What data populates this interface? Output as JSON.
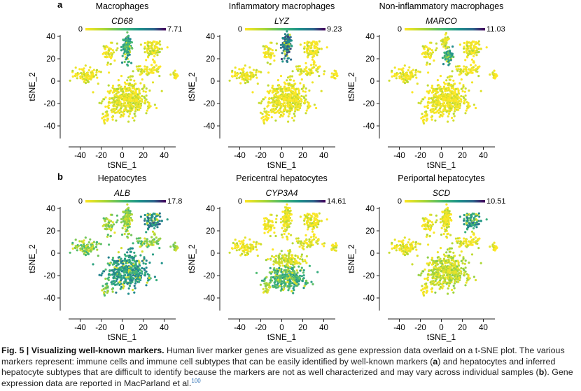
{
  "figure": {
    "caption": {
      "label": "Fig. 5 | Visualizing well-known markers.",
      "text_part1": "Human liver marker genes are visualized as gene expression data overlaid on a t-SNE plot. The various markers represent: immune cells and immune cell subtypes that can be easily identified by well-known markers (",
      "bold_a": "a",
      "text_part2": ") and hepatocytes and inferred hepatocyte subtypes that are difficult to identify because the markers are not as well characterized and may vary across individual samples (",
      "bold_b": "b",
      "text_part3": "). Gene expression data are reported in MacParland et al.",
      "ref": "100"
    },
    "colors": {
      "low": "#f7e61f",
      "mid_low": "#a6d63a",
      "mid": "#3fb67a",
      "mid_high": "#1f908c",
      "high_mid": "#2c6e8e",
      "high": "#44025a"
    }
  },
  "chart_data": [
    {
      "type": "scatter",
      "row_label": "a",
      "title": "Macrophages",
      "gene": "CD68",
      "scale_min": "0",
      "scale_max": "7.71",
      "xlabel": "tSNE_1",
      "ylabel": "tSNE_2",
      "xlim": [
        -55,
        55
      ],
      "ylim": [
        -55,
        45
      ],
      "xticks": [
        -40,
        -20,
        0,
        20,
        40
      ],
      "yticks": [
        -40,
        -20,
        0,
        20,
        40
      ],
      "clusters": [
        {
          "x": 5,
          "y": -16,
          "rx": 18,
          "ry": 14,
          "n": 420,
          "expr": 0.08
        },
        {
          "x": 5,
          "y": 30,
          "rx": 4,
          "ry": 12,
          "n": 120,
          "expr": 0.55
        },
        {
          "x": 30,
          "y": 28,
          "rx": 7,
          "ry": 7,
          "n": 90,
          "expr": 0.08
        },
        {
          "x": -35,
          "y": 5,
          "rx": 12,
          "ry": 6,
          "n": 90,
          "expr": 0.05
        },
        {
          "x": -12,
          "y": 25,
          "rx": 6,
          "ry": 9,
          "n": 50,
          "expr": 0.05
        },
        {
          "x": 25,
          "y": 10,
          "rx": 10,
          "ry": 5,
          "n": 60,
          "expr": 0.05
        },
        {
          "x": -15,
          "y": -30,
          "rx": 4,
          "ry": 6,
          "n": 25,
          "expr": 0.05
        },
        {
          "x": 50,
          "y": 5,
          "rx": 3,
          "ry": 3,
          "n": 20,
          "expr": 0.05
        }
      ]
    },
    {
      "type": "scatter",
      "row_label": "",
      "title": "Inflammatory macrophages",
      "gene": "LYZ",
      "scale_min": "0",
      "scale_max": "9.23",
      "xlabel": "tSNE_1",
      "ylabel": "tSNE_2",
      "xlim": [
        -55,
        55
      ],
      "ylim": [
        -55,
        45
      ],
      "xticks": [
        -40,
        -20,
        0,
        20,
        40
      ],
      "yticks": [
        -40,
        -20,
        0,
        20,
        40
      ],
      "clusters": [
        {
          "x": 5,
          "y": -16,
          "rx": 18,
          "ry": 14,
          "n": 420,
          "expr": 0.05
        },
        {
          "x": 5,
          "y": 32,
          "rx": 4,
          "ry": 11,
          "n": 130,
          "expr": 0.75
        },
        {
          "x": 30,
          "y": 28,
          "rx": 7,
          "ry": 7,
          "n": 90,
          "expr": 0.05
        },
        {
          "x": -35,
          "y": 5,
          "rx": 12,
          "ry": 6,
          "n": 90,
          "expr": 0.05
        },
        {
          "x": -12,
          "y": 25,
          "rx": 6,
          "ry": 9,
          "n": 50,
          "expr": 0.05
        },
        {
          "x": 25,
          "y": 10,
          "rx": 10,
          "ry": 5,
          "n": 60,
          "expr": 0.05
        },
        {
          "x": -15,
          "y": -30,
          "rx": 4,
          "ry": 6,
          "n": 25,
          "expr": 0.05
        },
        {
          "x": 50,
          "y": 5,
          "rx": 3,
          "ry": 3,
          "n": 20,
          "expr": 0.05
        }
      ]
    },
    {
      "type": "scatter",
      "row_label": "",
      "title": "Non-inflammatory macrophages",
      "gene": "MARCO",
      "scale_min": "0",
      "scale_max": "11.03",
      "xlabel": "tSNE_1",
      "ylabel": "tSNE_2",
      "xlim": [
        -55,
        55
      ],
      "ylim": [
        -55,
        45
      ],
      "xticks": [
        -40,
        -20,
        0,
        20,
        40
      ],
      "yticks": [
        -40,
        -20,
        0,
        20,
        40
      ],
      "clusters": [
        {
          "x": 5,
          "y": -16,
          "rx": 18,
          "ry": 14,
          "n": 420,
          "expr": 0.04
        },
        {
          "x": 7,
          "y": 22,
          "rx": 4,
          "ry": 6,
          "n": 80,
          "expr": 0.55
        },
        {
          "x": 4,
          "y": 36,
          "rx": 3,
          "ry": 5,
          "n": 40,
          "expr": 0.1
        },
        {
          "x": 30,
          "y": 28,
          "rx": 7,
          "ry": 7,
          "n": 90,
          "expr": 0.04
        },
        {
          "x": -35,
          "y": 5,
          "rx": 12,
          "ry": 6,
          "n": 90,
          "expr": 0.04
        },
        {
          "x": -12,
          "y": 25,
          "rx": 6,
          "ry": 9,
          "n": 50,
          "expr": 0.04
        },
        {
          "x": 25,
          "y": 10,
          "rx": 10,
          "ry": 5,
          "n": 60,
          "expr": 0.04
        },
        {
          "x": -15,
          "y": -30,
          "rx": 4,
          "ry": 6,
          "n": 25,
          "expr": 0.04
        },
        {
          "x": 50,
          "y": 5,
          "rx": 3,
          "ry": 3,
          "n": 20,
          "expr": 0.04
        }
      ]
    },
    {
      "type": "scatter",
      "row_label": "b",
      "title": "Hepatocytes",
      "gene": "ALB",
      "scale_min": "0",
      "scale_max": "17.8",
      "xlabel": "tSNE_1",
      "ylabel": "tSNE_2",
      "xlim": [
        -55,
        55
      ],
      "ylim": [
        -55,
        45
      ],
      "xticks": [
        -40,
        -20,
        0,
        20,
        40
      ],
      "yticks": [
        -40,
        -20,
        0,
        20,
        40
      ],
      "clusters": [
        {
          "x": 5,
          "y": -16,
          "rx": 18,
          "ry": 14,
          "n": 420,
          "expr": 0.62
        },
        {
          "x": 5,
          "y": 30,
          "rx": 4,
          "ry": 12,
          "n": 120,
          "expr": 0.3
        },
        {
          "x": 30,
          "y": 28,
          "rx": 7,
          "ry": 7,
          "n": 90,
          "expr": 0.7
        },
        {
          "x": -35,
          "y": 5,
          "rx": 12,
          "ry": 6,
          "n": 90,
          "expr": 0.35
        },
        {
          "x": -12,
          "y": 25,
          "rx": 6,
          "ry": 9,
          "n": 50,
          "expr": 0.3
        },
        {
          "x": 25,
          "y": 10,
          "rx": 10,
          "ry": 5,
          "n": 60,
          "expr": 0.35
        },
        {
          "x": -15,
          "y": -30,
          "rx": 4,
          "ry": 6,
          "n": 25,
          "expr": 0.4
        },
        {
          "x": 50,
          "y": 5,
          "rx": 3,
          "ry": 3,
          "n": 20,
          "expr": 0.3
        }
      ]
    },
    {
      "type": "scatter",
      "row_label": "",
      "title": "Pericentral hepatocytes",
      "gene": "CYP3A4",
      "scale_min": "0",
      "scale_max": "14.61",
      "xlabel": "tSNE_1",
      "ylabel": "tSNE_2",
      "xlim": [
        -55,
        55
      ],
      "ylim": [
        -55,
        45
      ],
      "xticks": [
        -40,
        -20,
        0,
        20,
        40
      ],
      "yticks": [
        -40,
        -20,
        0,
        20,
        40
      ],
      "clusters": [
        {
          "x": 5,
          "y": -22,
          "rx": 16,
          "ry": 10,
          "n": 320,
          "expr": 0.5
        },
        {
          "x": 5,
          "y": -6,
          "rx": 16,
          "ry": 6,
          "n": 120,
          "expr": 0.12
        },
        {
          "x": 5,
          "y": 30,
          "rx": 4,
          "ry": 12,
          "n": 120,
          "expr": 0.05
        },
        {
          "x": 30,
          "y": 28,
          "rx": 7,
          "ry": 7,
          "n": 90,
          "expr": 0.05
        },
        {
          "x": -35,
          "y": 5,
          "rx": 12,
          "ry": 6,
          "n": 90,
          "expr": 0.05
        },
        {
          "x": -12,
          "y": 25,
          "rx": 6,
          "ry": 9,
          "n": 50,
          "expr": 0.05
        },
        {
          "x": 25,
          "y": 10,
          "rx": 10,
          "ry": 5,
          "n": 60,
          "expr": 0.05
        },
        {
          "x": -15,
          "y": -30,
          "rx": 4,
          "ry": 6,
          "n": 25,
          "expr": 0.25
        },
        {
          "x": 50,
          "y": 5,
          "rx": 3,
          "ry": 3,
          "n": 20,
          "expr": 0.05
        }
      ]
    },
    {
      "type": "scatter",
      "row_label": "",
      "title": "Periportal hepatocytes",
      "gene": "SCD",
      "scale_min": "0",
      "scale_max": "10.51",
      "xlabel": "tSNE_1",
      "ylabel": "tSNE_2",
      "xlim": [
        -55,
        55
      ],
      "ylim": [
        -55,
        45
      ],
      "xticks": [
        -40,
        -20,
        0,
        20,
        40
      ],
      "yticks": [
        -40,
        -20,
        0,
        20,
        40
      ],
      "clusters": [
        {
          "x": 5,
          "y": -16,
          "rx": 18,
          "ry": 14,
          "n": 420,
          "expr": 0.18
        },
        {
          "x": 5,
          "y": 30,
          "rx": 4,
          "ry": 12,
          "n": 120,
          "expr": 0.06
        },
        {
          "x": 30,
          "y": 28,
          "rx": 7,
          "ry": 7,
          "n": 90,
          "expr": 0.62
        },
        {
          "x": -35,
          "y": 5,
          "rx": 12,
          "ry": 6,
          "n": 90,
          "expr": 0.06
        },
        {
          "x": -12,
          "y": 25,
          "rx": 6,
          "ry": 9,
          "n": 50,
          "expr": 0.05
        },
        {
          "x": 25,
          "y": 10,
          "rx": 10,
          "ry": 5,
          "n": 60,
          "expr": 0.06
        },
        {
          "x": -15,
          "y": -30,
          "rx": 4,
          "ry": 6,
          "n": 25,
          "expr": 0.06
        },
        {
          "x": 50,
          "y": 5,
          "rx": 3,
          "ry": 3,
          "n": 20,
          "expr": 0.05
        }
      ]
    }
  ]
}
